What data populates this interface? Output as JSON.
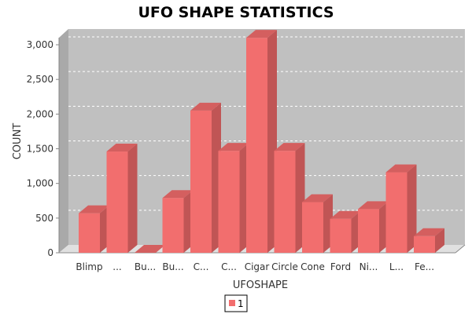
{
  "chart_data": {
    "type": "bar",
    "title": "UFO SHAPE STATISTICS",
    "xlabel": "UFOSHAPE",
    "ylabel": "COUNT",
    "categories": [
      "Blimp",
      "...",
      "Bu...",
      "Bu...",
      "C...",
      "C...",
      "Cigar",
      "Circle",
      "Cone",
      "Ford",
      "Ni...",
      "L...",
      "Fe..."
    ],
    "series": [
      {
        "name": "1",
        "color": "#f26e6e",
        "values": [
          570,
          1460,
          0,
          790,
          2050,
          1470,
          3100,
          1470,
          730,
          490,
          630,
          1160,
          240
        ]
      }
    ],
    "ylim": [
      0,
      3250
    ],
    "yticks": [
      0,
      500,
      1000,
      1500,
      2000,
      2500,
      3000
    ],
    "ytick_labels": [
      "0",
      "500",
      "1,000",
      "1,500",
      "2,000",
      "2,500",
      "3,000"
    ],
    "grid": true,
    "legend": "bottom-center"
  }
}
